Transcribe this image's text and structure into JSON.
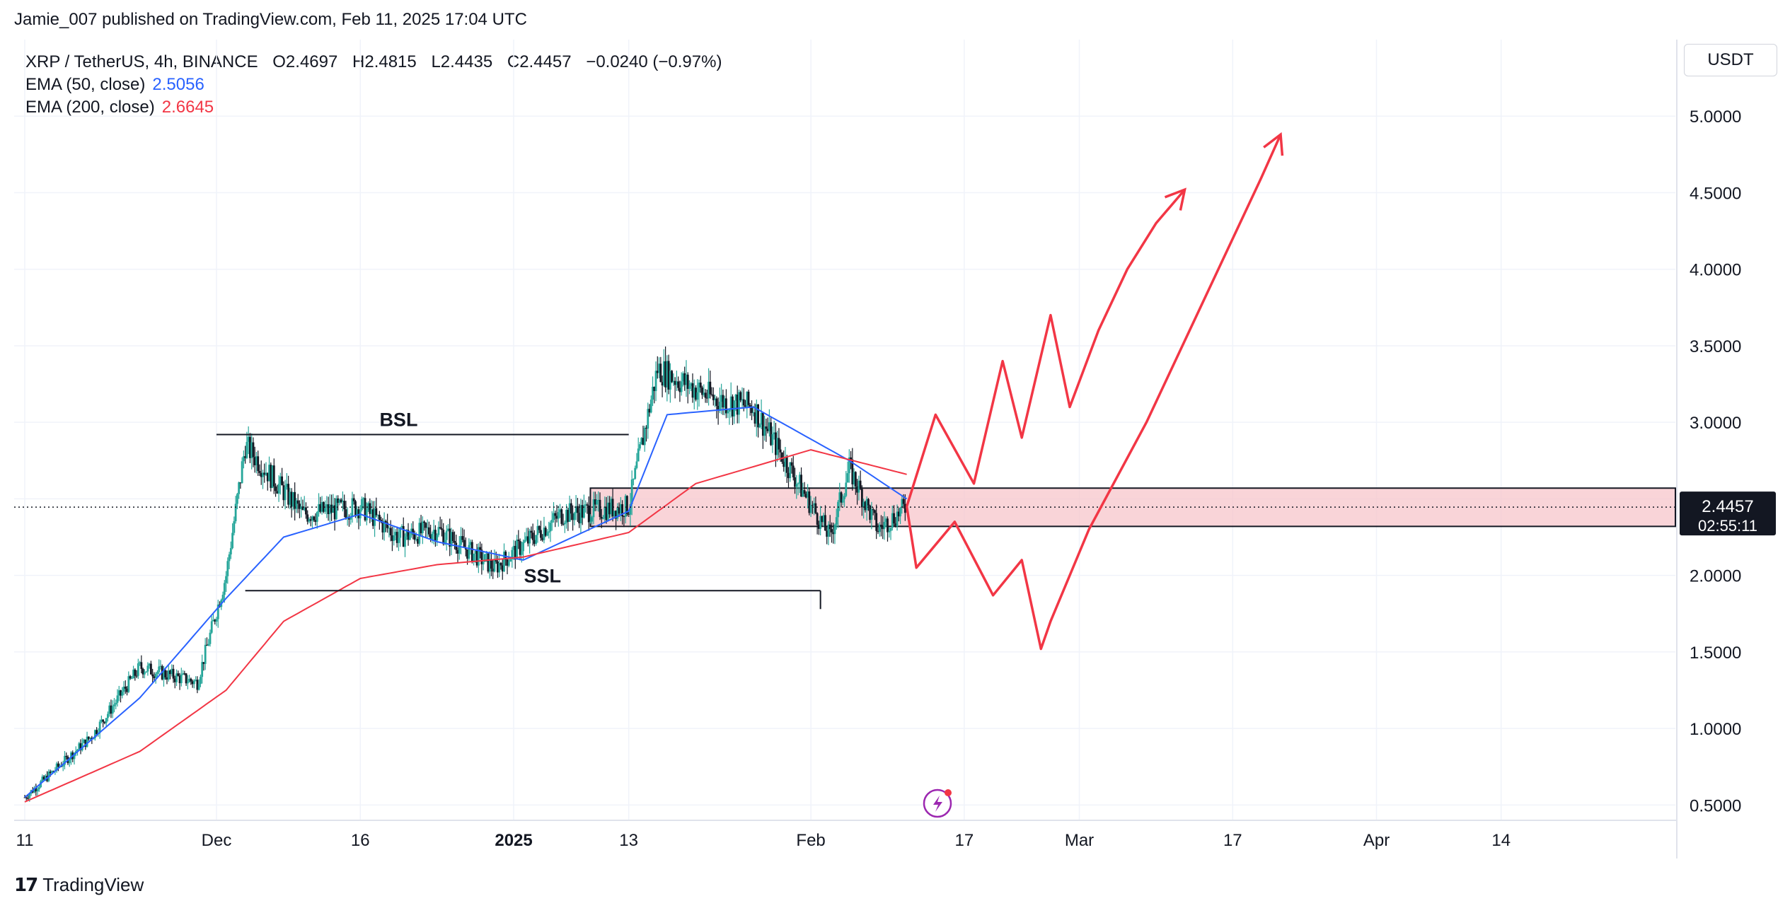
{
  "header": {
    "published_by": "Jamie_007 published on TradingView.com, Feb 11, 2025 17:04 UTC"
  },
  "legend": {
    "symbol": "XRP / TetherUS, 4h, BINANCE",
    "open": "O2.4697",
    "high": "H2.4815",
    "low": "L2.4435",
    "close": "C2.4457",
    "change": "−0.0240 (−0.97%)",
    "ema50_label": "EMA (50, close)",
    "ema50_value": "2.5056",
    "ema200_label": "EMA (200, close)",
    "ema200_value": "2.6645"
  },
  "price_scale": {
    "currency": "USDT",
    "current_price": "2.4457",
    "countdown": "02:55:11"
  },
  "footer": {
    "brand": "TradingView"
  },
  "colors": {
    "up": "#26a69a",
    "ema50": "#2962ff",
    "ema200": "#f23645",
    "projection": "#f23645",
    "zone_fill": "#f7c6cb"
  },
  "chart_data": {
    "type": "line",
    "title": "XRP / TetherUS, 4h, BINANCE",
    "ylim": [
      0.4,
      5.5
    ],
    "y_ticks": [
      0.5,
      1.0,
      1.5,
      2.0,
      2.5,
      3.0,
      3.5,
      4.0,
      4.5,
      5.0
    ],
    "y_tick_labels": [
      "0.5000",
      "1.0000",
      "1.5000",
      "2.0000",
      "2.5000",
      "3.0000",
      "3.5000",
      "4.0000",
      "4.5000",
      "5.0000"
    ],
    "x_tick_labels": [
      "11",
      "Dec",
      "16",
      "2025",
      "13",
      "Feb",
      "17",
      "Mar",
      "17",
      "Apr",
      "14"
    ],
    "grid": true,
    "annotations": {
      "bsl_label": "BSL",
      "bsl_level": 2.92,
      "ssl_label": "SSL",
      "ssl_level": 1.9
    },
    "zone": {
      "low": 2.32,
      "high": 2.57
    },
    "series": [
      {
        "name": "XRP / TetherUS",
        "x": [
          "Nov 11",
          "Nov 18",
          "Nov 23",
          "Nov 29",
          "Dec 2",
          "Dec 4",
          "Dec 10",
          "Dec 16",
          "Dec 20",
          "Dec 24",
          "Dec 30",
          "Jan 6",
          "Jan 13",
          "Jan 16",
          "Jan 22",
          "Jan 26",
          "Feb 3",
          "Feb 5",
          "Feb 8",
          "Feb 11"
        ],
        "values": [
          0.55,
          0.95,
          1.4,
          1.3,
          2.0,
          2.85,
          2.4,
          2.45,
          2.25,
          2.3,
          2.05,
          2.4,
          2.45,
          3.35,
          3.15,
          3.1,
          2.25,
          2.7,
          2.3,
          2.45
        ]
      },
      {
        "name": "EMA (50, close)",
        "x": [
          "Nov 11",
          "Nov 23",
          "Dec 2",
          "Dec 8",
          "Dec 16",
          "Dec 24",
          "Jan 2",
          "Jan 13",
          "Jan 17",
          "Jan 26",
          "Feb 5",
          "Feb 11"
        ],
        "values": [
          0.55,
          1.2,
          1.85,
          2.25,
          2.4,
          2.22,
          2.1,
          2.42,
          3.05,
          3.1,
          2.75,
          2.5
        ]
      },
      {
        "name": "EMA (200, close)",
        "x": [
          "Nov 11",
          "Nov 23",
          "Dec 2",
          "Dec 8",
          "Dec 16",
          "Dec 24",
          "Jan 2",
          "Jan 13",
          "Jan 20",
          "Feb 1",
          "Feb 11"
        ],
        "values": [
          0.52,
          0.85,
          1.25,
          1.7,
          1.98,
          2.07,
          2.12,
          2.28,
          2.6,
          2.82,
          2.66
        ]
      }
    ],
    "projections": [
      {
        "name": "bullish path",
        "x": [
          "Feb 11",
          "Feb 14",
          "Feb 18",
          "Feb 21",
          "Feb 23",
          "Feb 26",
          "Feb 28",
          "Mar 3",
          "Mar 6",
          "Mar 9",
          "Mar 12"
        ],
        "values": [
          2.45,
          3.05,
          2.6,
          3.4,
          2.9,
          3.7,
          3.1,
          3.6,
          4.0,
          4.3,
          4.52
        ]
      },
      {
        "name": "bearish then bullish path",
        "x": [
          "Feb 11",
          "Feb 12",
          "Feb 16",
          "Feb 20",
          "Feb 23",
          "Feb 25",
          "Feb 26",
          "Mar 2",
          "Mar 8",
          "Mar 14",
          "Mar 20",
          "Mar 22"
        ],
        "values": [
          2.45,
          2.05,
          2.35,
          1.87,
          2.1,
          1.52,
          1.7,
          2.3,
          3.0,
          3.8,
          4.6,
          4.88
        ]
      }
    ]
  }
}
